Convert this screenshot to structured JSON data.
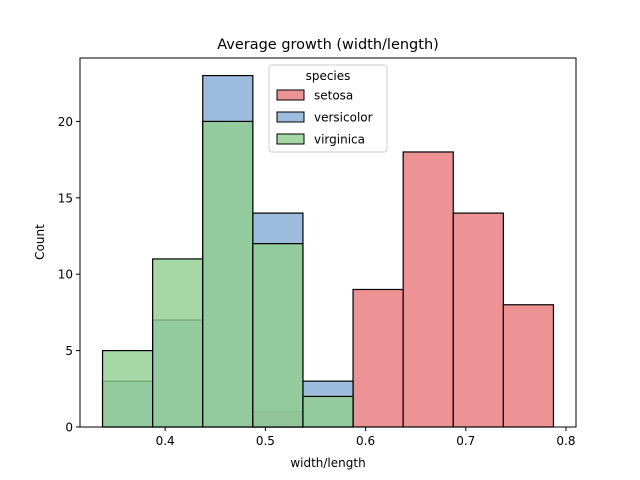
{
  "chart_data": {
    "type": "bar",
    "title": "Average growth (width/length)",
    "xlabel": "width/length",
    "ylabel": "Count",
    "bin_edges": [
      0.3375,
      0.3875,
      0.4375,
      0.4875,
      0.5375,
      0.5875,
      0.6375,
      0.6875,
      0.7375,
      0.7875
    ],
    "xlim": [
      0.315,
      0.81
    ],
    "ylim": [
      0,
      24.15
    ],
    "x_ticks": [
      0.4,
      0.5,
      0.6,
      0.7,
      0.8
    ],
    "x_tick_labels": [
      "0.4",
      "0.5",
      "0.6",
      "0.7",
      "0.8"
    ],
    "y_ticks": [
      0,
      5,
      10,
      15,
      20
    ],
    "y_tick_labels": [
      "0",
      "5",
      "10",
      "15",
      "20"
    ],
    "grid": false,
    "legend": {
      "title": "species",
      "placement": "top-center"
    },
    "series": [
      {
        "name": "setosa",
        "color": "#e8787a",
        "values": [
          0,
          0,
          0,
          1,
          0,
          9,
          18,
          14,
          8
        ]
      },
      {
        "name": "versicolor",
        "color": "#86add6",
        "values": [
          3,
          7,
          23,
          14,
          3,
          0,
          0,
          0,
          0
        ]
      },
      {
        "name": "virginica",
        "color": "#90ce8e",
        "values": [
          5,
          11,
          20,
          12,
          2,
          0,
          0,
          0,
          0
        ]
      }
    ]
  }
}
